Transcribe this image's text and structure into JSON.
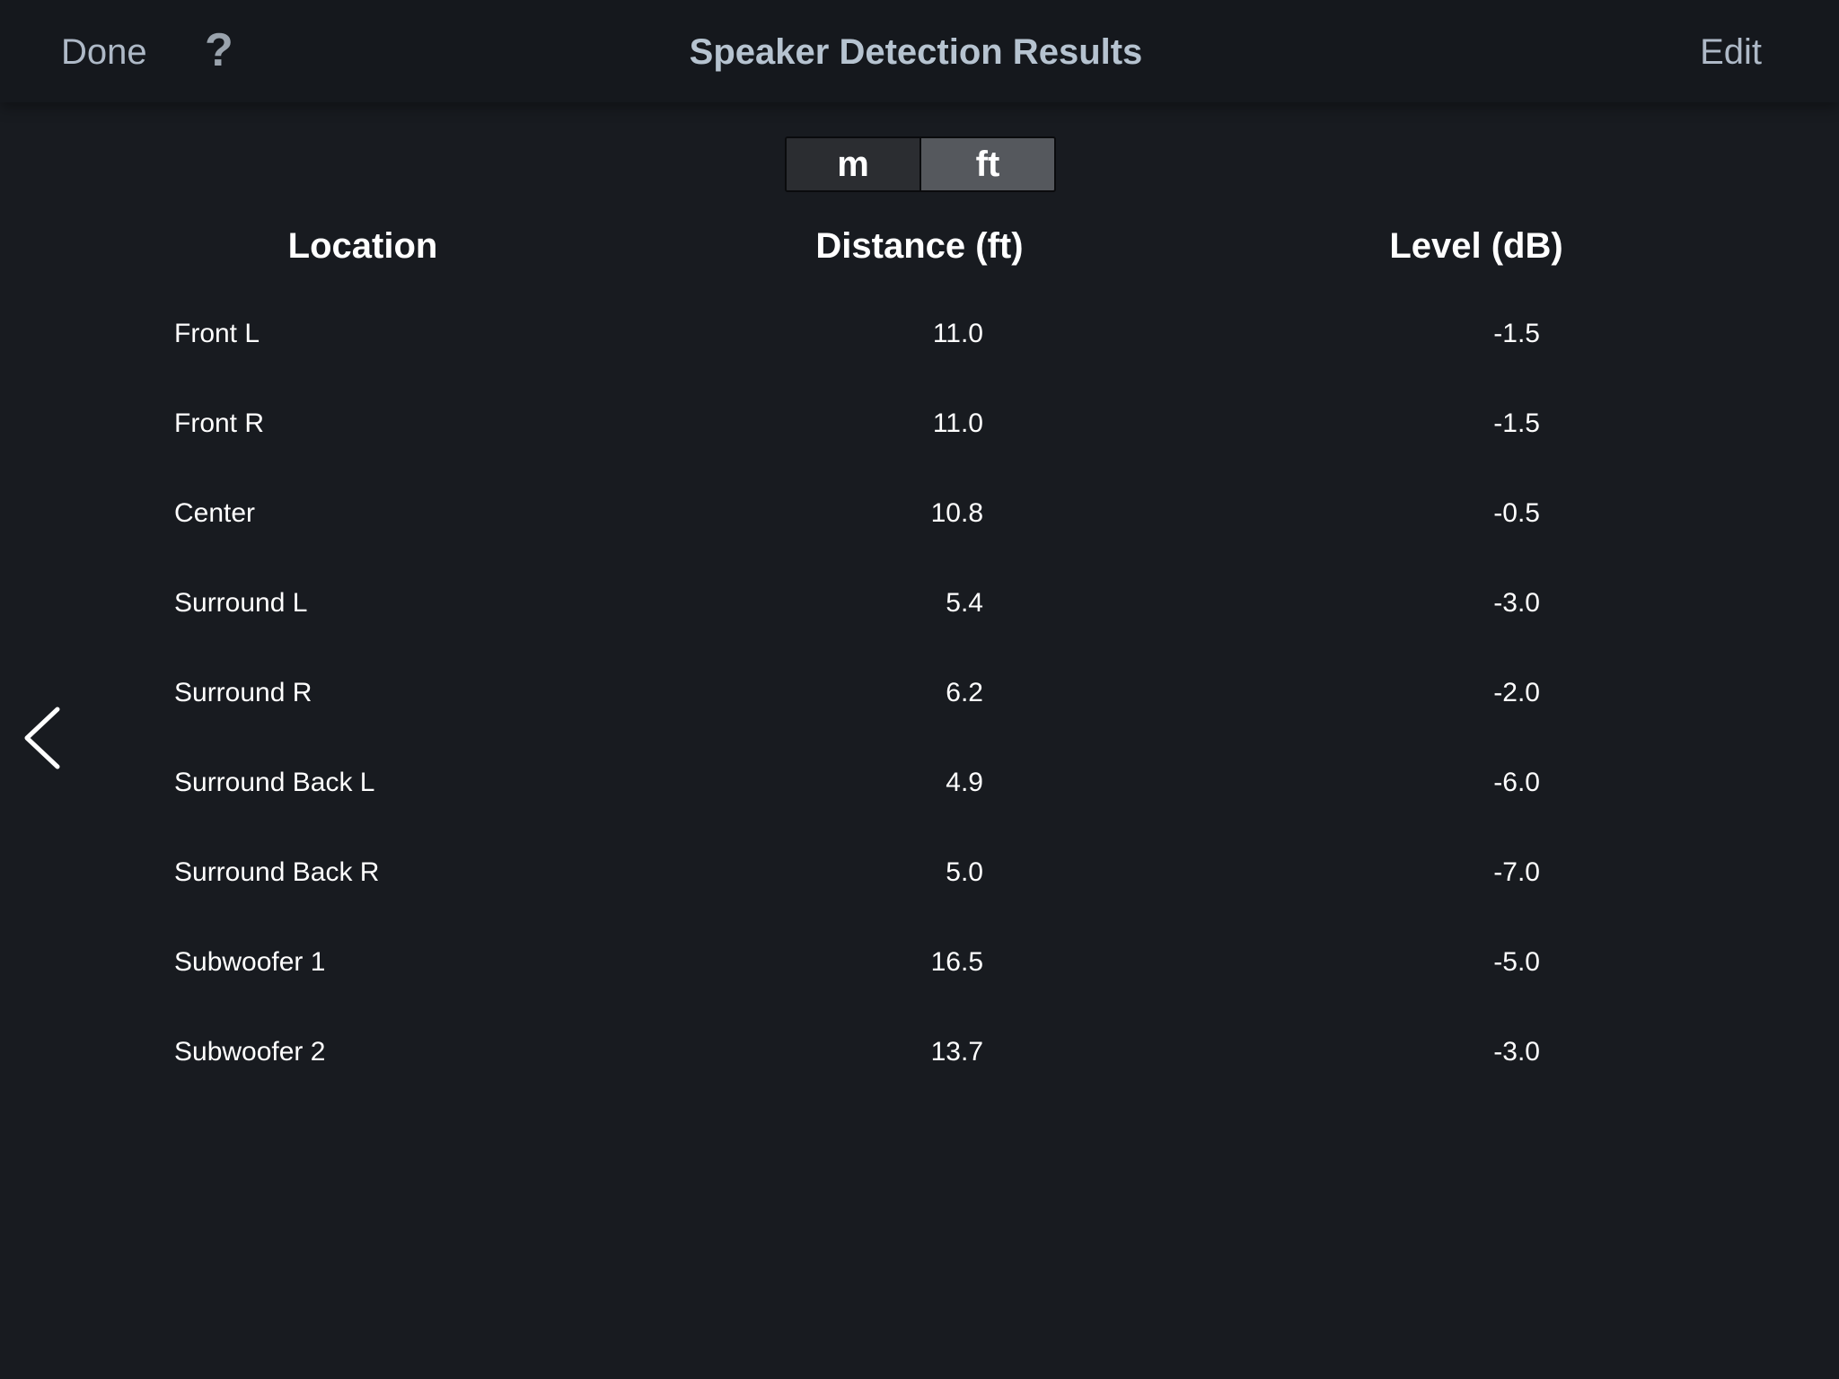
{
  "header": {
    "done_label": "Done",
    "help_label": "?",
    "title": "Speaker Detection Results",
    "edit_label": "Edit"
  },
  "units": {
    "options": [
      "m",
      "ft"
    ],
    "selected": "ft"
  },
  "table": {
    "columns": [
      "Location",
      "Distance (ft)",
      "Level (dB)"
    ],
    "rows": [
      {
        "location": "Front L",
        "distance": "11.0",
        "level": "-1.5"
      },
      {
        "location": "Front R",
        "distance": "11.0",
        "level": "-1.5"
      },
      {
        "location": "Center",
        "distance": "10.8",
        "level": "-0.5"
      },
      {
        "location": "Surround L",
        "distance": "5.4",
        "level": "-3.0"
      },
      {
        "location": "Surround R",
        "distance": "6.2",
        "level": "-2.0"
      },
      {
        "location": "Surround Back L",
        "distance": "4.9",
        "level": "-6.0"
      },
      {
        "location": "Surround Back R",
        "distance": "5.0",
        "level": "-7.0"
      },
      {
        "location": "Subwoofer 1",
        "distance": "16.5",
        "level": "-5.0"
      },
      {
        "location": "Subwoofer 2",
        "distance": "13.7",
        "level": "-3.0"
      }
    ]
  },
  "icons": {
    "back": "chevron-left-icon",
    "help": "question-mark-icon"
  },
  "colors": {
    "background": "#181b20",
    "topbar": "#15181d",
    "nav_text": "#aeb9c7",
    "unit_selected": "#55585d",
    "unit_unselected": "#2b2d31"
  }
}
